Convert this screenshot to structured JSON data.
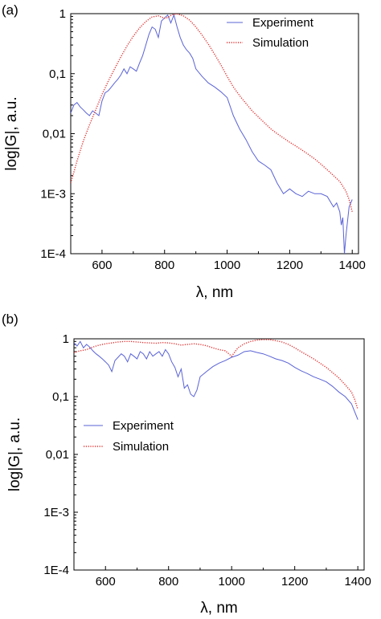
{
  "chart_data": [
    {
      "type": "line",
      "panel_label": "(a)",
      "xlabel": "λ, nm",
      "ylabel": "log|G|, a.u.",
      "xlim": [
        500,
        1420
      ],
      "ylim": [
        0.0001,
        1
      ],
      "yscale": "log",
      "x_ticks": [
        "600",
        "800",
        "1000",
        "1200",
        "1400"
      ],
      "y_ticks": [
        "1E-4",
        "1E-3",
        "0,01",
        "0,1",
        "1"
      ],
      "legend_position": "top-right",
      "series": [
        {
          "name": "Experiment",
          "color": "#5a63d6",
          "style": "solid",
          "x": [
            500,
            510,
            520,
            530,
            540,
            550,
            560,
            570,
            580,
            590,
            600,
            610,
            620,
            630,
            640,
            650,
            660,
            670,
            680,
            690,
            700,
            710,
            720,
            730,
            740,
            750,
            760,
            770,
            780,
            790,
            800,
            810,
            820,
            830,
            840,
            850,
            860,
            870,
            880,
            890,
            900,
            920,
            940,
            960,
            980,
            1000,
            1020,
            1040,
            1060,
            1080,
            1100,
            1120,
            1140,
            1160,
            1180,
            1200,
            1220,
            1240,
            1260,
            1280,
            1300,
            1320,
            1340,
            1350,
            1360,
            1365,
            1370,
            1375,
            1380,
            1390,
            1400
          ],
          "y": [
            0.022,
            0.03,
            0.033,
            0.028,
            0.025,
            0.022,
            0.02,
            0.024,
            0.022,
            0.02,
            0.035,
            0.048,
            0.052,
            0.06,
            0.07,
            0.08,
            0.095,
            0.12,
            0.1,
            0.13,
            0.12,
            0.11,
            0.15,
            0.2,
            0.3,
            0.45,
            0.6,
            0.55,
            0.4,
            0.75,
            0.85,
            0.95,
            0.7,
            0.95,
            0.6,
            0.4,
            0.3,
            0.25,
            0.22,
            0.18,
            0.12,
            0.09,
            0.07,
            0.06,
            0.05,
            0.04,
            0.02,
            0.012,
            0.008,
            0.005,
            0.0035,
            0.003,
            0.0025,
            0.0015,
            0.001,
            0.0012,
            0.001,
            0.0009,
            0.0011,
            0.001,
            0.001,
            0.0009,
            0.0006,
            0.0007,
            0.0005,
            0.0003,
            0.0004,
            0.0001,
            0.0002,
            0.0006,
            0.0008
          ]
        },
        {
          "name": "Simulation",
          "color": "#e03030",
          "style": "dotted",
          "x": [
            500,
            520,
            540,
            560,
            580,
            600,
            620,
            640,
            660,
            680,
            700,
            720,
            740,
            760,
            780,
            800,
            810,
            820,
            830,
            840,
            860,
            880,
            900,
            920,
            940,
            960,
            980,
            1000,
            1020,
            1040,
            1060,
            1080,
            1100,
            1120,
            1140,
            1160,
            1180,
            1200,
            1220,
            1240,
            1260,
            1280,
            1300,
            1320,
            1340,
            1360,
            1380,
            1390,
            1400
          ],
          "y": [
            0.0015,
            0.0035,
            0.0075,
            0.014,
            0.025,
            0.045,
            0.075,
            0.12,
            0.19,
            0.29,
            0.42,
            0.58,
            0.74,
            0.88,
            0.92,
            0.84,
            0.86,
            0.93,
            0.98,
            0.99,
            0.92,
            0.78,
            0.6,
            0.44,
            0.31,
            0.21,
            0.14,
            0.09,
            0.06,
            0.043,
            0.032,
            0.024,
            0.019,
            0.015,
            0.012,
            0.01,
            0.0085,
            0.0072,
            0.0062,
            0.0053,
            0.0045,
            0.0038,
            0.0031,
            0.0025,
            0.002,
            0.0016,
            0.0011,
            0.0008,
            0.0005
          ]
        }
      ]
    },
    {
      "type": "line",
      "panel_label": "(b)",
      "xlabel": "λ, nm",
      "ylabel": "log|G|, a.u.",
      "xlim": [
        500,
        1420
      ],
      "ylim": [
        0.0001,
        1
      ],
      "yscale": "log",
      "x_ticks": [
        "600",
        "800",
        "1000",
        "1200",
        "1400"
      ],
      "y_ticks": [
        "1E-4",
        "1E-3",
        "0,01",
        "0,1",
        "1"
      ],
      "legend_position": "middle-left",
      "series": [
        {
          "name": "Experiment",
          "color": "#5a63d6",
          "style": "solid",
          "x": [
            500,
            510,
            520,
            530,
            540,
            550,
            560,
            570,
            580,
            590,
            600,
            610,
            620,
            630,
            640,
            650,
            660,
            670,
            680,
            690,
            700,
            710,
            720,
            730,
            740,
            750,
            760,
            770,
            780,
            790,
            800,
            810,
            820,
            830,
            840,
            850,
            860,
            870,
            880,
            890,
            900,
            920,
            940,
            960,
            980,
            1000,
            1020,
            1040,
            1060,
            1080,
            1100,
            1120,
            1140,
            1160,
            1180,
            1200,
            1220,
            1240,
            1260,
            1280,
            1300,
            1320,
            1340,
            1360,
            1380,
            1390,
            1400
          ],
          "y": [
            0.85,
            0.75,
            0.9,
            0.7,
            0.8,
            0.72,
            0.62,
            0.55,
            0.5,
            0.45,
            0.4,
            0.35,
            0.27,
            0.42,
            0.48,
            0.55,
            0.5,
            0.4,
            0.55,
            0.5,
            0.45,
            0.6,
            0.55,
            0.45,
            0.6,
            0.5,
            0.55,
            0.6,
            0.5,
            0.65,
            0.55,
            0.4,
            0.32,
            0.22,
            0.3,
            0.14,
            0.16,
            0.11,
            0.1,
            0.13,
            0.22,
            0.27,
            0.33,
            0.38,
            0.42,
            0.48,
            0.52,
            0.6,
            0.62,
            0.58,
            0.55,
            0.5,
            0.45,
            0.42,
            0.38,
            0.32,
            0.28,
            0.25,
            0.22,
            0.2,
            0.18,
            0.15,
            0.12,
            0.1,
            0.075,
            0.055,
            0.04
          ]
        },
        {
          "name": "Simulation",
          "color": "#e03030",
          "style": "dotted",
          "x": [
            500,
            520,
            540,
            560,
            580,
            600,
            620,
            640,
            660,
            680,
            700,
            720,
            740,
            760,
            780,
            800,
            820,
            840,
            860,
            880,
            900,
            920,
            940,
            960,
            980,
            1000,
            1020,
            1040,
            1060,
            1080,
            1100,
            1120,
            1140,
            1160,
            1180,
            1200,
            1220,
            1240,
            1260,
            1280,
            1300,
            1320,
            1340,
            1360,
            1380,
            1390,
            1400
          ],
          "y": [
            0.58,
            0.62,
            0.65,
            0.72,
            0.78,
            0.82,
            0.85,
            0.88,
            0.9,
            0.9,
            0.88,
            0.86,
            0.85,
            0.84,
            0.86,
            0.85,
            0.82,
            0.78,
            0.8,
            0.82,
            0.8,
            0.76,
            0.7,
            0.65,
            0.62,
            0.5,
            0.7,
            0.82,
            0.9,
            0.95,
            0.97,
            0.97,
            0.93,
            0.88,
            0.8,
            0.7,
            0.6,
            0.52,
            0.45,
            0.38,
            0.32,
            0.26,
            0.21,
            0.16,
            0.12,
            0.09,
            0.06
          ]
        }
      ]
    }
  ]
}
